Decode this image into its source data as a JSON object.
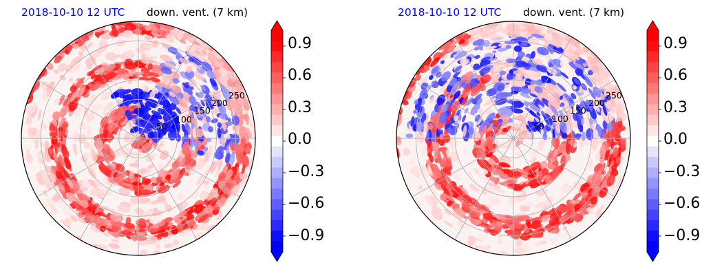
{
  "panels": [
    {
      "id": "left",
      "title_date": "2018-10-10 12 UTC",
      "title_variable": "down. vent. (7 km)",
      "radial_labels": [
        "50",
        "100",
        "150",
        "200",
        "250"
      ],
      "dominant_pattern": "spiral-bands-red-west-south, blue-cluster-core-east"
    },
    {
      "id": "right",
      "title_date": "2018-10-10 12 UTC",
      "title_variable": "down. vent. (7 km)",
      "radial_labels": [
        "50",
        "100",
        "150",
        "200",
        "250"
      ],
      "dominant_pattern": "strong-red-arcs-south-west, blue-streaks-north-east"
    }
  ],
  "chart_data": [
    {
      "type": "heatmap",
      "projection": "polar",
      "title": "2018-10-10 12 UTC    down. vent. (7 km)",
      "radial_ticks": [
        50,
        100,
        150,
        200,
        250
      ],
      "radial_max": 300,
      "angular_gridlines_deg": [
        0,
        30,
        60,
        90,
        120,
        150,
        180,
        210,
        240,
        270,
        300,
        330
      ],
      "colorbar": {
        "min": -1.05,
        "max": 1.05,
        "step": 0.1,
        "ticks": [
          0.9,
          0.6,
          0.3,
          0.0,
          -0.3,
          -0.6,
          -0.9
        ],
        "tick_labels": [
          "0.9",
          "0.6",
          "0.3",
          "0.0",
          "−0.3",
          "−0.6",
          "−0.9"
        ],
        "extend": "both",
        "colormap": "bwr"
      },
      "grid": true
    },
    {
      "type": "heatmap",
      "projection": "polar",
      "title": "2018-10-10 12 UTC    down. vent. (7 km)",
      "radial_ticks": [
        50,
        100,
        150,
        200,
        250
      ],
      "radial_max": 300,
      "angular_gridlines_deg": [
        0,
        30,
        60,
        90,
        120,
        150,
        180,
        210,
        240,
        270,
        300,
        330
      ],
      "colorbar": {
        "min": -1.05,
        "max": 1.05,
        "step": 0.1,
        "ticks": [
          0.9,
          0.6,
          0.3,
          0.0,
          -0.3,
          -0.6,
          -0.9
        ],
        "tick_labels": [
          "0.9",
          "0.6",
          "0.3",
          "0.0",
          "−0.3",
          "−0.6",
          "−0.9"
        ],
        "extend": "both",
        "colormap": "bwr"
      },
      "grid": true
    }
  ],
  "colors": {
    "positive": "#ff0000",
    "negative": "#0000ff",
    "neutral": "#ffffff",
    "title_date": "#0000ff",
    "grid": "#b0b0b0"
  }
}
